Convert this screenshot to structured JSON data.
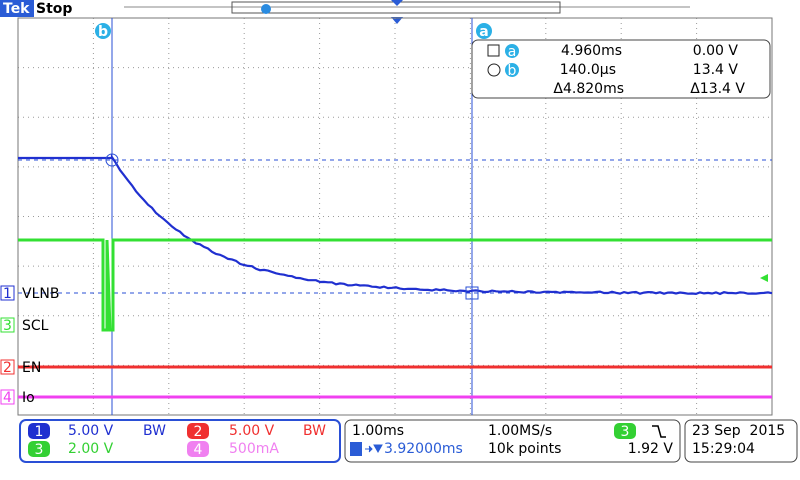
{
  "header": {
    "brand": "Tek",
    "status": "Stop"
  },
  "cursors": {
    "a": "a",
    "b": "b"
  },
  "readout": {
    "rows": [
      {
        "marker": "a",
        "time": "4.960ms",
        "volts": "0.00 V"
      },
      {
        "marker": "b",
        "time": "140.0µs",
        "volts": "13.4 V"
      },
      {
        "time": "Δ4.820ms",
        "volts": "Δ13.4 V"
      }
    ]
  },
  "traces": [
    {
      "number": "1",
      "label": "VLNB"
    },
    {
      "number": "3",
      "label": "SCL"
    },
    {
      "number": "2",
      "label": "EN"
    },
    {
      "number": "4",
      "label": "Io"
    }
  ],
  "channel_settings": [
    {
      "number": "1",
      "scale": "5.00 V",
      "bandwidth": "BW"
    },
    {
      "number": "2",
      "scale": "5.00 V",
      "bandwidth": "BW"
    },
    {
      "number": "3",
      "scale": "2.00 V"
    },
    {
      "number": "4",
      "scale": "500mA"
    }
  ],
  "timebase": {
    "scale": "1.00ms",
    "sample_rate": "1.00MS/s",
    "position": "3.92000ms",
    "record": "10k points"
  },
  "trigger": {
    "source": "3",
    "level": "1.92 V"
  },
  "clock": {
    "date": "23 Sep  2015",
    "time": "15:29:04"
  }
}
